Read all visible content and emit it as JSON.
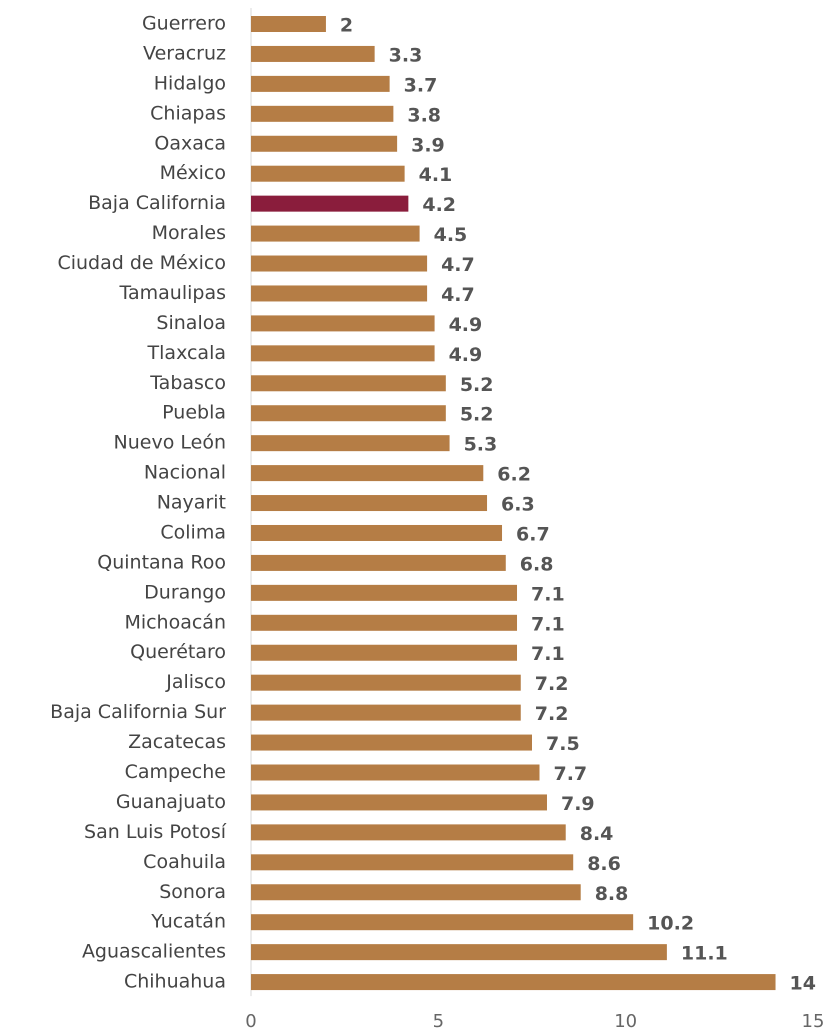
{
  "chart_data": {
    "type": "barh",
    "categories": [
      "Guerrero",
      "Veracruz",
      "Hidalgo",
      "Chiapas",
      "Oaxaca",
      "México",
      "Baja California",
      "Morales",
      "Ciudad de México",
      "Tamaulipas",
      "Sinaloa",
      "Tlaxcala",
      "Tabasco",
      "Puebla",
      "Nuevo León",
      "Nacional",
      "Nayarit",
      "Colima",
      "Quintana Roo",
      "Durango",
      "Michoacán",
      "Querétaro",
      "Jalisco",
      "Baja California Sur",
      "Zacatecas",
      "Campeche",
      "Guanajuato",
      "San Luis Potosí",
      "Coahuila",
      "Sonora",
      "Yucatán",
      "Aguascalientes",
      "Chihuahua"
    ],
    "values": [
      2,
      3.3,
      3.7,
      3.8,
      3.9,
      4.1,
      4.2,
      4.5,
      4.7,
      4.7,
      4.9,
      4.9,
      5.2,
      5.2,
      5.3,
      6.2,
      6.3,
      6.7,
      6.8,
      7.1,
      7.1,
      7.1,
      7.2,
      7.2,
      7.5,
      7.7,
      7.9,
      8.4,
      8.6,
      8.8,
      10.2,
      11.1,
      14
    ],
    "colors": [
      "#b57d45",
      "#b57d45",
      "#b57d45",
      "#b57d45",
      "#b57d45",
      "#b57d45",
      "#8a1d3c",
      "#b57d45",
      "#b57d45",
      "#b57d45",
      "#b57d45",
      "#b57d45",
      "#b57d45",
      "#b57d45",
      "#b57d45",
      "#b57d45",
      "#b57d45",
      "#b57d45",
      "#b57d45",
      "#b57d45",
      "#b57d45",
      "#b57d45",
      "#b57d45",
      "#b57d45",
      "#b57d45",
      "#b57d45",
      "#b57d45",
      "#b57d45",
      "#b57d45",
      "#b57d45",
      "#b57d45",
      "#b57d45",
      "#b57d45"
    ],
    "xlim": [
      0,
      15
    ],
    "xticks": [
      0,
      5,
      10,
      15
    ]
  }
}
